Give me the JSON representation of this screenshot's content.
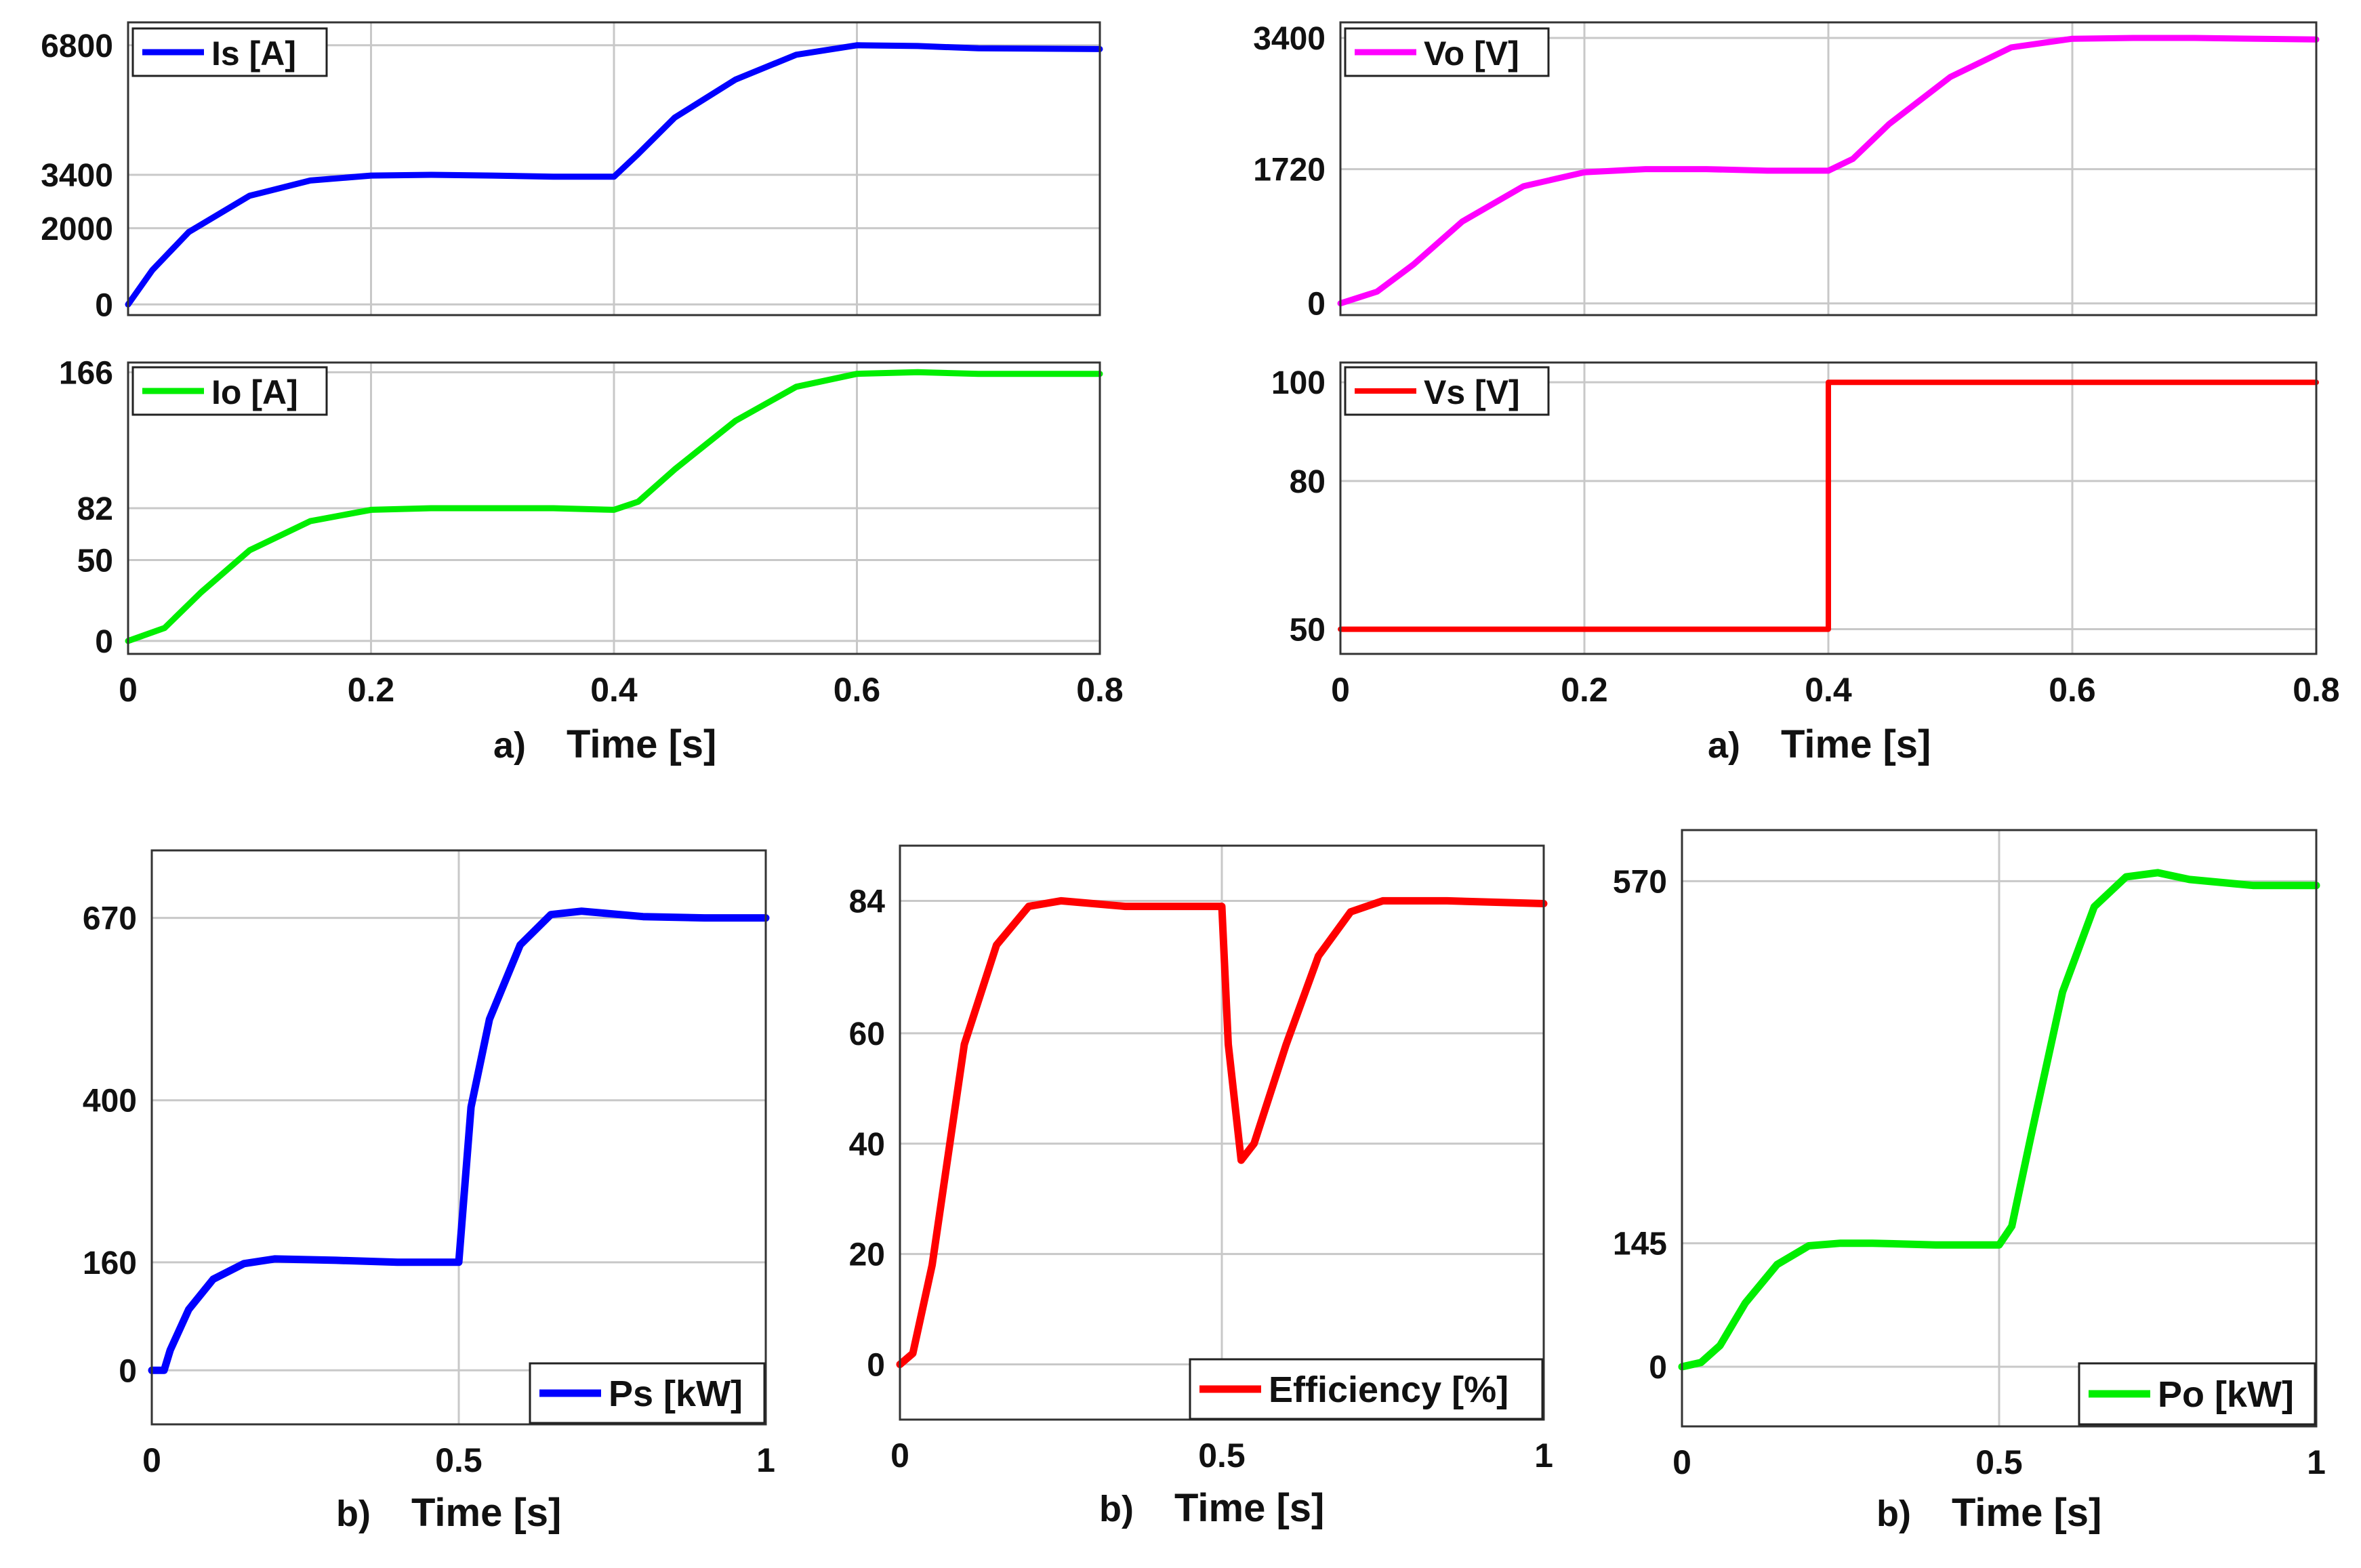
{
  "chart_data": [
    {
      "id": "is",
      "type": "line",
      "panel_label": "",
      "xlabel": "",
      "xlim": [
        0,
        0.8
      ],
      "ylim": [
        -280,
        7400
      ],
      "xticks": [
        0,
        0.2,
        0.4,
        0.6,
        0.8
      ],
      "xtick_labels": [],
      "yticks": [
        0,
        2000,
        3400,
        6800
      ],
      "ytick_labels": [
        "0",
        "2000",
        "3400",
        "6800"
      ],
      "legend": {
        "label": "Is [A]",
        "position": "top-left"
      },
      "series": [
        {
          "name": "Is [A]",
          "color": "#0000ff",
          "points": [
            [
              0,
              0
            ],
            [
              0.02,
              900
            ],
            [
              0.05,
              1900
            ],
            [
              0.1,
              2850
            ],
            [
              0.15,
              3250
            ],
            [
              0.2,
              3380
            ],
            [
              0.25,
              3400
            ],
            [
              0.3,
              3380
            ],
            [
              0.35,
              3350
            ],
            [
              0.4,
              3350
            ],
            [
              0.42,
              3950
            ],
            [
              0.45,
              4900
            ],
            [
              0.5,
              5900
            ],
            [
              0.55,
              6550
            ],
            [
              0.6,
              6800
            ],
            [
              0.65,
              6780
            ],
            [
              0.7,
              6720
            ],
            [
              0.8,
              6700
            ]
          ]
        }
      ]
    },
    {
      "id": "io",
      "type": "line",
      "panel_label": "a)",
      "xlabel": "Time [s]",
      "xlim": [
        0,
        0.8
      ],
      "ylim": [
        -8,
        172
      ],
      "xticks": [
        0,
        0.2,
        0.4,
        0.6,
        0.8
      ],
      "xtick_labels": [
        "0",
        "0.2",
        "0.4",
        "0.6",
        "0.8"
      ],
      "yticks": [
        0,
        50,
        82,
        166
      ],
      "ytick_labels": [
        "0",
        "50",
        "82",
        "166"
      ],
      "legend": {
        "label": "Io [A]",
        "position": "top-left"
      },
      "series": [
        {
          "name": "Io [A]",
          "color": "#00ee00",
          "points": [
            [
              0,
              0
            ],
            [
              0.03,
              8
            ],
            [
              0.06,
              30
            ],
            [
              0.1,
              56
            ],
            [
              0.15,
              74
            ],
            [
              0.2,
              81
            ],
            [
              0.25,
              82
            ],
            [
              0.3,
              82
            ],
            [
              0.35,
              82
            ],
            [
              0.4,
              81
            ],
            [
              0.42,
              86
            ],
            [
              0.45,
              106
            ],
            [
              0.5,
              136
            ],
            [
              0.55,
              157
            ],
            [
              0.6,
              165
            ],
            [
              0.65,
              166
            ],
            [
              0.7,
              165
            ],
            [
              0.8,
              165
            ]
          ]
        }
      ]
    },
    {
      "id": "vo",
      "type": "line",
      "panel_label": "",
      "xlabel": "",
      "xlim": [
        0,
        0.8
      ],
      "ylim": [
        -150,
        3600
      ],
      "xticks": [
        0,
        0.2,
        0.4,
        0.6,
        0.8
      ],
      "xtick_labels": [],
      "yticks": [
        0,
        1720,
        3400
      ],
      "ytick_labels": [
        "0",
        "1720",
        "3400"
      ],
      "legend": {
        "label": "Vo [V]",
        "position": "top-left"
      },
      "series": [
        {
          "name": "Vo [V]",
          "color": "#ff00ff",
          "points": [
            [
              0,
              0
            ],
            [
              0.03,
              150
            ],
            [
              0.06,
              500
            ],
            [
              0.1,
              1050
            ],
            [
              0.15,
              1500
            ],
            [
              0.2,
              1680
            ],
            [
              0.25,
              1720
            ],
            [
              0.3,
              1720
            ],
            [
              0.35,
              1700
            ],
            [
              0.4,
              1700
            ],
            [
              0.42,
              1850
            ],
            [
              0.45,
              2300
            ],
            [
              0.5,
              2900
            ],
            [
              0.55,
              3280
            ],
            [
              0.6,
              3390
            ],
            [
              0.65,
              3400
            ],
            [
              0.7,
              3400
            ],
            [
              0.8,
              3380
            ]
          ]
        }
      ]
    },
    {
      "id": "vs",
      "type": "line",
      "panel_label": "a)",
      "xlabel": "Time [s]",
      "xlim": [
        0,
        0.8
      ],
      "ylim": [
        45,
        104
      ],
      "xticks": [
        0,
        0.2,
        0.4,
        0.6,
        0.8
      ],
      "xtick_labels": [
        "0",
        "0.2",
        "0.4",
        "0.6",
        "0.8"
      ],
      "yticks": [
        50,
        80,
        100
      ],
      "ytick_labels": [
        "50",
        "80",
        "100"
      ],
      "legend": {
        "label": "Vs [V]",
        "position": "top-left"
      },
      "series": [
        {
          "name": "Vs [V]",
          "color": "#ff0000",
          "points": [
            [
              0,
              50
            ],
            [
              0.4,
              50
            ],
            [
              0.4,
              100
            ],
            [
              0.8,
              100
            ]
          ]
        }
      ]
    },
    {
      "id": "ps",
      "type": "line",
      "panel_label": "b)",
      "xlabel": "Time [s]",
      "xlim": [
        0,
        1
      ],
      "ylim": [
        -80,
        770
      ],
      "xticks": [
        0,
        0.5,
        1
      ],
      "xtick_labels": [
        "0",
        "0.5",
        "1"
      ],
      "yticks": [
        0,
        160,
        400,
        670
      ],
      "ytick_labels": [
        "0",
        "160",
        "400",
        "670"
      ],
      "legend": {
        "label": "Ps [kW]",
        "position": "bottom-right"
      },
      "series": [
        {
          "name": "Ps [kW]",
          "color": "#0000ff",
          "points": [
            [
              0,
              0
            ],
            [
              0.02,
              0
            ],
            [
              0.03,
              30
            ],
            [
              0.06,
              90
            ],
            [
              0.1,
              135
            ],
            [
              0.15,
              158
            ],
            [
              0.2,
              165
            ],
            [
              0.3,
              163
            ],
            [
              0.4,
              160
            ],
            [
              0.5,
              160
            ],
            [
              0.52,
              390
            ],
            [
              0.55,
              520
            ],
            [
              0.6,
              630
            ],
            [
              0.65,
              675
            ],
            [
              0.7,
              680
            ],
            [
              0.8,
              672
            ],
            [
              0.9,
              670
            ],
            [
              1,
              670
            ]
          ]
        }
      ]
    },
    {
      "id": "eff",
      "type": "line",
      "panel_label": "b)",
      "xlabel": "Time [s]",
      "xlim": [
        0,
        1
      ],
      "ylim": [
        -10,
        94
      ],
      "xticks": [
        0,
        0.5,
        1
      ],
      "xtick_labels": [
        "0",
        "0.5",
        "1"
      ],
      "yticks": [
        0,
        20,
        40,
        60,
        84
      ],
      "ytick_labels": [
        "0",
        "20",
        "40",
        "60",
        "84"
      ],
      "legend": {
        "label": "Efficiency [%]",
        "position": "bottom-right"
      },
      "series": [
        {
          "name": "Efficiency [%]",
          "color": "#ff0000",
          "points": [
            [
              0,
              0
            ],
            [
              0.02,
              2
            ],
            [
              0.05,
              18
            ],
            [
              0.08,
              42
            ],
            [
              0.1,
              58
            ],
            [
              0.15,
              76
            ],
            [
              0.2,
              83
            ],
            [
              0.25,
              84
            ],
            [
              0.3,
              83.5
            ],
            [
              0.35,
              83
            ],
            [
              0.4,
              83
            ],
            [
              0.5,
              83
            ],
            [
              0.51,
              58
            ],
            [
              0.53,
              37
            ],
            [
              0.55,
              40
            ],
            [
              0.6,
              58
            ],
            [
              0.65,
              74
            ],
            [
              0.7,
              82
            ],
            [
              0.75,
              84
            ],
            [
              0.85,
              84
            ],
            [
              1,
              83.5
            ]
          ]
        }
      ]
    },
    {
      "id": "po",
      "type": "line",
      "panel_label": "b)",
      "xlabel": "Time [s]",
      "xlim": [
        0,
        1
      ],
      "ylim": [
        -70,
        630
      ],
      "xticks": [
        0,
        0.5,
        1
      ],
      "xtick_labels": [
        "0",
        "0.5",
        "1"
      ],
      "yticks": [
        0,
        145,
        570
      ],
      "ytick_labels": [
        "0",
        "145",
        "570"
      ],
      "legend": {
        "label": "Po [kW]",
        "position": "bottom-right"
      },
      "series": [
        {
          "name": "Po [kW]",
          "color": "#00ee00",
          "points": [
            [
              0,
              0
            ],
            [
              0.03,
              5
            ],
            [
              0.06,
              25
            ],
            [
              0.1,
              75
            ],
            [
              0.15,
              120
            ],
            [
              0.2,
              142
            ],
            [
              0.25,
              145
            ],
            [
              0.3,
              145
            ],
            [
              0.4,
              143
            ],
            [
              0.5,
              143
            ],
            [
              0.52,
              165
            ],
            [
              0.55,
              270
            ],
            [
              0.6,
              440
            ],
            [
              0.65,
              540
            ],
            [
              0.7,
              575
            ],
            [
              0.75,
              580
            ],
            [
              0.8,
              572
            ],
            [
              0.9,
              565
            ],
            [
              1,
              565
            ]
          ]
        }
      ]
    }
  ]
}
